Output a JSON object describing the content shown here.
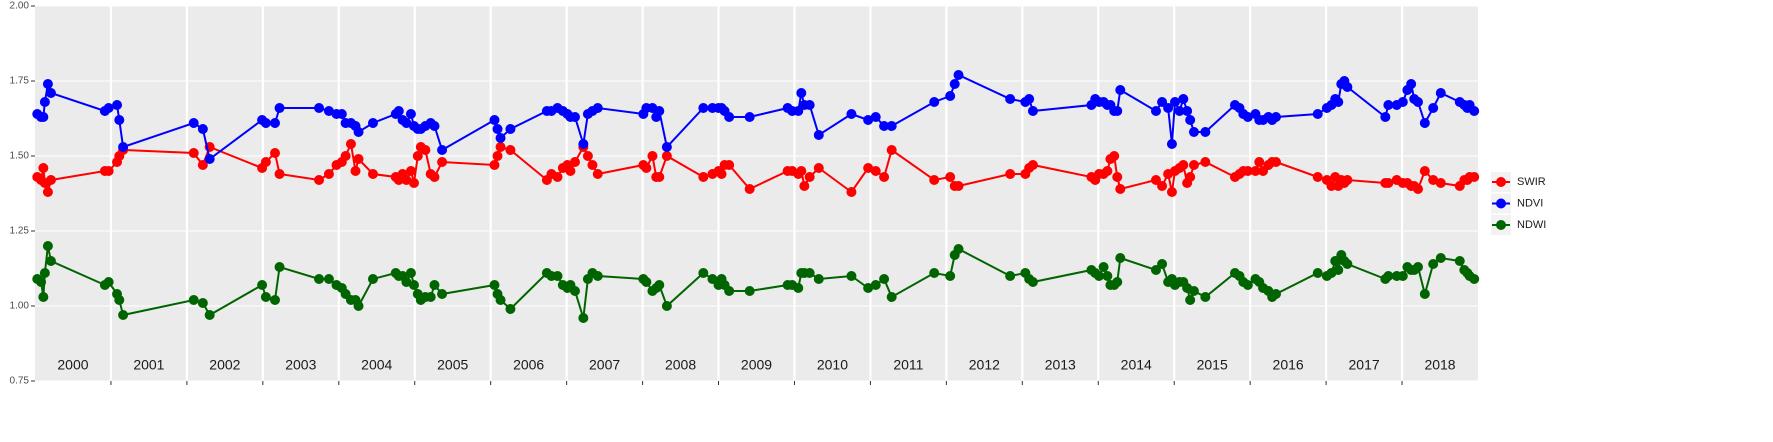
{
  "chart_data": {
    "type": "line",
    "x": [
      2000.03,
      2000.08,
      2000.11,
      2000.13,
      2000.17,
      2000.21,
      2000.92,
      2000.97,
      2001.08,
      2001.11,
      2001.16,
      2002.09,
      2002.21,
      2002.3,
      2002.99,
      2003.04,
      2003.16,
      2003.22,
      2003.74,
      2003.87,
      2003.97,
      2004.04,
      2004.09,
      2004.16,
      2004.22,
      2004.26,
      2004.45,
      2004.75,
      2004.79,
      2004.84,
      2004.89,
      2004.95,
      2004.99,
      2005.04,
      2005.08,
      2005.14,
      2005.21,
      2005.26,
      2005.36,
      2006.05,
      2006.09,
      2006.13,
      2006.26,
      2006.74,
      2006.8,
      2006.88,
      2006.95,
      2007.01,
      2007.05,
      2007.11,
      2007.22,
      2007.28,
      2007.34,
      2007.41,
      2008.01,
      2008.05,
      2008.13,
      2008.18,
      2008.22,
      2008.32,
      2008.8,
      2008.92,
      2009.0,
      2009.04,
      2009.08,
      2009.14,
      2009.41,
      2009.91,
      2009.97,
      2010.05,
      2010.09,
      2010.13,
      2010.2,
      2010.32,
      2010.75,
      2010.97,
      2011.07,
      2011.18,
      2011.28,
      2011.84,
      2012.05,
      2012.11,
      2012.16,
      2012.84,
      2013.04,
      2013.09,
      2013.14,
      2013.91,
      2013.96,
      2014.01,
      2014.07,
      2014.12,
      2014.16,
      2014.21,
      2014.25,
      2014.29,
      2014.76,
      2014.84,
      2014.92,
      2014.97,
      2015.01,
      2015.07,
      2015.12,
      2015.17,
      2015.21,
      2015.26,
      2015.41,
      2015.8,
      2015.86,
      2015.91,
      2015.97,
      2016.07,
      2016.12,
      2016.17,
      2016.24,
      2016.29,
      2016.34,
      2016.89,
      2017.01,
      2017.07,
      2017.12,
      2017.16,
      2017.2,
      2017.24,
      2017.28,
      2017.78,
      2017.82,
      2017.93,
      2018.01,
      2018.07,
      2018.12,
      2018.16,
      2018.21,
      2018.3,
      2018.41,
      2018.51,
      2018.76,
      2018.82,
      2018.86,
      2018.89,
      2018.95
    ],
    "series": [
      {
        "name": "SWIR",
        "color": "#ff0000",
        "values": [
          1.43,
          1.42,
          1.46,
          1.41,
          1.38,
          1.42,
          1.45,
          1.45,
          1.48,
          1.5,
          1.52,
          1.51,
          1.47,
          1.53,
          1.46,
          1.48,
          1.51,
          1.44,
          1.42,
          1.44,
          1.47,
          1.48,
          1.5,
          1.54,
          1.45,
          1.49,
          1.44,
          1.43,
          1.42,
          1.44,
          1.42,
          1.45,
          1.41,
          1.5,
          1.53,
          1.52,
          1.44,
          1.43,
          1.48,
          1.47,
          1.5,
          1.53,
          1.52,
          1.42,
          1.44,
          1.43,
          1.46,
          1.47,
          1.45,
          1.48,
          1.53,
          1.5,
          1.47,
          1.44,
          1.47,
          1.46,
          1.5,
          1.43,
          1.43,
          1.5,
          1.43,
          1.44,
          1.45,
          1.44,
          1.47,
          1.47,
          1.39,
          1.45,
          1.45,
          1.44,
          1.45,
          1.4,
          1.43,
          1.46,
          1.38,
          1.46,
          1.45,
          1.43,
          1.52,
          1.42,
          1.43,
          1.4,
          1.4,
          1.44,
          1.44,
          1.46,
          1.47,
          1.43,
          1.42,
          1.44,
          1.44,
          1.45,
          1.49,
          1.5,
          1.43,
          1.39,
          1.42,
          1.4,
          1.44,
          1.38,
          1.45,
          1.46,
          1.47,
          1.41,
          1.43,
          1.47,
          1.48,
          1.43,
          1.44,
          1.45,
          1.45,
          1.45,
          1.48,
          1.45,
          1.47,
          1.48,
          1.48,
          1.43,
          1.42,
          1.4,
          1.43,
          1.4,
          1.42,
          1.41,
          1.42,
          1.41,
          1.41,
          1.42,
          1.41,
          1.41,
          1.4,
          1.4,
          1.39,
          1.45,
          1.42,
          1.41,
          1.4,
          1.42,
          1.42,
          1.43,
          1.43
        ]
      },
      {
        "name": "NDVI",
        "color": "#0000ff",
        "values": [
          1.64,
          1.63,
          1.63,
          1.68,
          1.74,
          1.71,
          1.65,
          1.66,
          1.67,
          1.62,
          1.53,
          1.61,
          1.59,
          1.49,
          1.62,
          1.61,
          1.61,
          1.66,
          1.66,
          1.65,
          1.64,
          1.64,
          1.61,
          1.61,
          1.6,
          1.58,
          1.61,
          1.64,
          1.65,
          1.62,
          1.61,
          1.64,
          1.6,
          1.59,
          1.59,
          1.6,
          1.61,
          1.6,
          1.52,
          1.62,
          1.59,
          1.56,
          1.59,
          1.65,
          1.65,
          1.66,
          1.65,
          1.64,
          1.63,
          1.63,
          1.54,
          1.64,
          1.65,
          1.66,
          1.64,
          1.66,
          1.66,
          1.63,
          1.65,
          1.53,
          1.66,
          1.66,
          1.66,
          1.66,
          1.65,
          1.63,
          1.63,
          1.66,
          1.65,
          1.65,
          1.71,
          1.67,
          1.67,
          1.57,
          1.64,
          1.62,
          1.63,
          1.6,
          1.6,
          1.68,
          1.7,
          1.74,
          1.77,
          1.69,
          1.68,
          1.69,
          1.65,
          1.67,
          1.69,
          1.68,
          1.68,
          1.67,
          1.67,
          1.65,
          1.65,
          1.72,
          1.65,
          1.68,
          1.66,
          1.54,
          1.68,
          1.65,
          1.69,
          1.65,
          1.62,
          1.58,
          1.58,
          1.67,
          1.66,
          1.64,
          1.63,
          1.64,
          1.62,
          1.62,
          1.63,
          1.62,
          1.63,
          1.64,
          1.66,
          1.67,
          1.69,
          1.68,
          1.74,
          1.75,
          1.73,
          1.63,
          1.67,
          1.67,
          1.68,
          1.72,
          1.74,
          1.69,
          1.68,
          1.61,
          1.66,
          1.71,
          1.68,
          1.67,
          1.66,
          1.67,
          1.65
        ]
      },
      {
        "name": "NDWI",
        "color": "#006400",
        "values": [
          1.09,
          1.08,
          1.03,
          1.11,
          1.2,
          1.15,
          1.07,
          1.08,
          1.04,
          1.02,
          0.97,
          1.02,
          1.01,
          0.97,
          1.07,
          1.03,
          1.02,
          1.13,
          1.09,
          1.09,
          1.07,
          1.06,
          1.04,
          1.02,
          1.02,
          1.0,
          1.09,
          1.11,
          1.1,
          1.1,
          1.08,
          1.11,
          1.07,
          1.04,
          1.02,
          1.03,
          1.03,
          1.07,
          1.04,
          1.07,
          1.04,
          1.02,
          0.99,
          1.11,
          1.1,
          1.1,
          1.07,
          1.06,
          1.07,
          1.05,
          0.96,
          1.09,
          1.11,
          1.1,
          1.09,
          1.08,
          1.05,
          1.06,
          1.07,
          1.0,
          1.11,
          1.09,
          1.07,
          1.09,
          1.07,
          1.05,
          1.05,
          1.07,
          1.07,
          1.06,
          1.11,
          1.11,
          1.11,
          1.09,
          1.1,
          1.06,
          1.07,
          1.09,
          1.03,
          1.11,
          1.1,
          1.17,
          1.19,
          1.1,
          1.11,
          1.09,
          1.08,
          1.12,
          1.11,
          1.1,
          1.13,
          1.1,
          1.07,
          1.07,
          1.08,
          1.16,
          1.12,
          1.14,
          1.08,
          1.09,
          1.07,
          1.08,
          1.08,
          1.06,
          1.02,
          1.05,
          1.03,
          1.11,
          1.1,
          1.08,
          1.07,
          1.09,
          1.08,
          1.06,
          1.05,
          1.03,
          1.04,
          1.11,
          1.1,
          1.11,
          1.15,
          1.12,
          1.17,
          1.15,
          1.14,
          1.09,
          1.1,
          1.1,
          1.1,
          1.13,
          1.12,
          1.12,
          1.13,
          1.04,
          1.14,
          1.16,
          1.15,
          1.12,
          1.11,
          1.1,
          1.09
        ]
      }
    ],
    "xlim": [
      2000,
      2019
    ],
    "xticks": [
      {
        "value": 2000.5,
        "label": "2000"
      },
      {
        "value": 2001.5,
        "label": "2001"
      },
      {
        "value": 2002.5,
        "label": "2002"
      },
      {
        "value": 2003.5,
        "label": "2003"
      },
      {
        "value": 2004.5,
        "label": "2004"
      },
      {
        "value": 2005.5,
        "label": "2005"
      },
      {
        "value": 2006.5,
        "label": "2006"
      },
      {
        "value": 2007.5,
        "label": "2007"
      },
      {
        "value": 2008.5,
        "label": "2008"
      },
      {
        "value": 2009.5,
        "label": "2009"
      },
      {
        "value": 2010.5,
        "label": "2010"
      },
      {
        "value": 2011.5,
        "label": "2011"
      },
      {
        "value": 2012.5,
        "label": "2012"
      },
      {
        "value": 2013.5,
        "label": "2013"
      },
      {
        "value": 2014.5,
        "label": "2014"
      },
      {
        "value": 2015.5,
        "label": "2015"
      },
      {
        "value": 2016.5,
        "label": "2016"
      },
      {
        "value": 2017.5,
        "label": "2017"
      },
      {
        "value": 2018.5,
        "label": "2018"
      }
    ],
    "year_lines": [
      2001,
      2002,
      2003,
      2004,
      2005,
      2006,
      2007,
      2008,
      2009,
      2010,
      2011,
      2012,
      2013,
      2014,
      2015,
      2016,
      2017,
      2018
    ],
    "ylim": [
      0.75,
      2.0
    ],
    "yticks": [
      0.75,
      {
        "value": 1.0,
        "label": "1.00"
      },
      1.25,
      {
        "value": 1.5,
        "label": "1.50"
      },
      1.75,
      {
        "value": 2.0,
        "label": "2.00"
      }
    ],
    "grid": true,
    "legend": "right"
  }
}
